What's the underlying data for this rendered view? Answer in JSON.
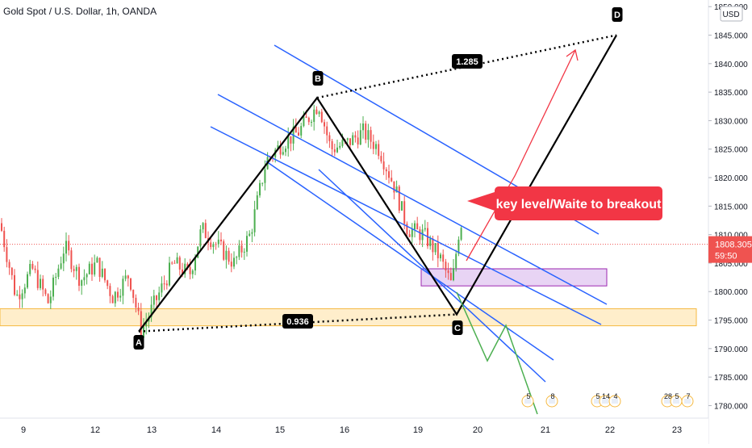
{
  "header": {
    "title": "Gold Spot / U.S. Dollar, 1h, OANDA"
  },
  "colors": {
    "up": "#26a69a",
    "up_fill": "#4caf50",
    "down": "#ef5350",
    "channel": "#2962ff",
    "pattern": "#000000",
    "support_zone": "#ffe0a0",
    "support_zone_border": "#f5b942",
    "purple_zone": "#e8d4f4",
    "purple_border": "#9c27b0",
    "callout": "#f23645",
    "price_line": "#ef5350"
  },
  "chart_data": {
    "type": "candlestick",
    "title": "Gold Spot / U.S. Dollar, 1h, OANDA",
    "ylim": [
      1777,
      1851
    ],
    "y_unit": "USD",
    "yticks": [
      "1850.000",
      "1845.000",
      "1840.000",
      "1835.000",
      "1830.000",
      "1825.000",
      "1820.000",
      "1815.000",
      "1810.000",
      "1805.000",
      "1800.000",
      "1795.000",
      "1790.000",
      "1785.000",
      "1780.000"
    ],
    "xticks": [
      "9",
      "12",
      "13",
      "14",
      "15",
      "16",
      "19",
      "20",
      "21",
      "22",
      "23"
    ],
    "current_price": "1808.305",
    "countdown": "59:50",
    "price_series": [
      [
        0,
        1812
      ],
      [
        20,
        1799
      ],
      [
        40,
        1804
      ],
      [
        60,
        1798
      ],
      [
        80,
        1808
      ],
      [
        100,
        1802
      ],
      [
        120,
        1805
      ],
      [
        140,
        1799
      ],
      [
        160,
        1803
      ],
      [
        175,
        1793
      ],
      [
        195,
        1799
      ],
      [
        215,
        1805
      ],
      [
        235,
        1803
      ],
      [
        250,
        1811
      ],
      [
        270,
        1808
      ],
      [
        290,
        1805
      ],
      [
        310,
        1810
      ],
      [
        330,
        1823
      ],
      [
        350,
        1826
      ],
      [
        370,
        1828
      ],
      [
        395,
        1833
      ],
      [
        410,
        1825
      ],
      [
        430,
        1826
      ],
      [
        450,
        1828
      ],
      [
        470,
        1825
      ],
      [
        490,
        1818
      ],
      [
        505,
        1811
      ],
      [
        525,
        1810
      ],
      [
        545,
        1806
      ],
      [
        560,
        1801
      ],
      [
        570,
        1812
      ]
    ],
    "pattern_points": [
      {
        "label": "A",
        "price": 1793
      },
      {
        "label": "B",
        "price": 1834
      },
      {
        "label": "C",
        "price": 1796
      },
      {
        "label": "D",
        "price": 1845
      }
    ],
    "fib_labels": [
      "1.285",
      "0.936"
    ],
    "annotation": "key level/Waite to breakout",
    "zones": [
      {
        "name": "support",
        "from": 1794,
        "to": 1797
      },
      {
        "name": "purple",
        "from": 1801,
        "to": 1804
      }
    ],
    "event_badges": [
      "5",
      "8",
      "5",
      "14",
      "4",
      "28",
      "5",
      "7"
    ]
  }
}
